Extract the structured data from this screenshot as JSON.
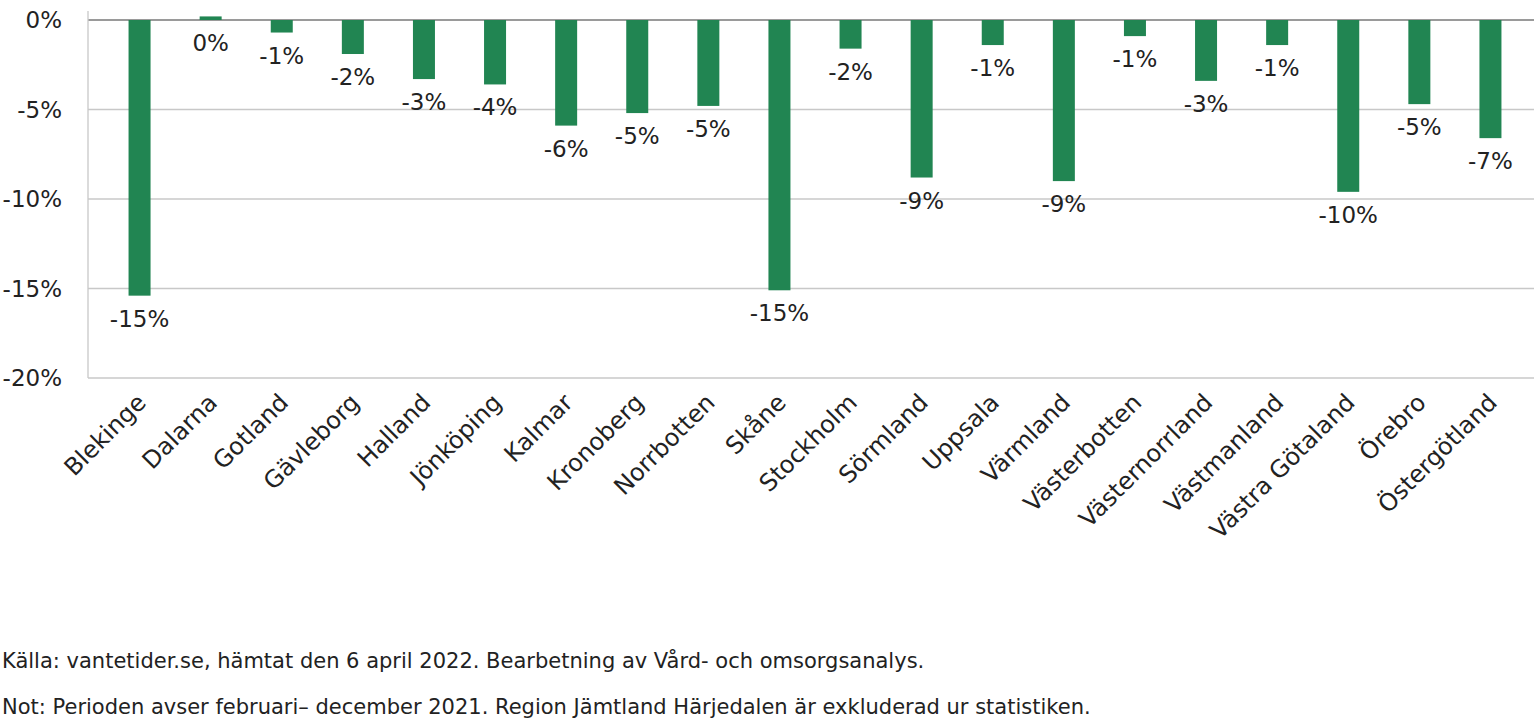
{
  "chart_data": {
    "type": "bar",
    "categories": [
      "Blekinge",
      "Dalarna",
      "Gotland",
      "Gävleborg",
      "Halland",
      "Jönköping",
      "Kalmar",
      "Kronoberg",
      "Norrbotten",
      "Skåne",
      "Stockholm",
      "Sörmland",
      "Uppsala",
      "Värmland",
      "Västerbotten",
      "Västernorrland",
      "Västmanland",
      "Västra Götaland",
      "Örebro",
      "Östergötland"
    ],
    "values": [
      -15.4,
      0.2,
      -0.7,
      -1.9,
      -3.3,
      -3.6,
      -5.9,
      -5.2,
      -4.8,
      -15.1,
      -1.6,
      -8.8,
      -1.4,
      -9.0,
      -0.9,
      -3.4,
      -1.4,
      -9.6,
      -4.7,
      -6.6
    ],
    "value_labels": [
      "-15%",
      "0%",
      "-1%",
      "-2%",
      "-3%",
      "-4%",
      "-6%",
      "-5%",
      "-5%",
      "-15%",
      "-2%",
      "-9%",
      "-1%",
      "-9%",
      "-1%",
      "-3%",
      "-1%",
      "-10%",
      "-5%",
      "-7%"
    ],
    "color": "#218552",
    "ylim": [
      -20,
      0.5
    ],
    "yticks": [
      {
        "value": 0,
        "label": "0%"
      },
      {
        "value": -5,
        "label": "-5%"
      },
      {
        "value": -10,
        "label": "-10%"
      },
      {
        "value": -15,
        "label": "-15%"
      },
      {
        "value": -20,
        "label": "-20%"
      }
    ],
    "grid": true,
    "data_labels": true,
    "annotations": [
      "Källa: vantetider.se, hämtat den 6 april 2022. Bearbetning av Vård- och omsorgsanalys.",
      "Not: Perioden avser februari– december 2021. Region Jämtland Härjedalen är exkluderad ur statistiken."
    ]
  }
}
